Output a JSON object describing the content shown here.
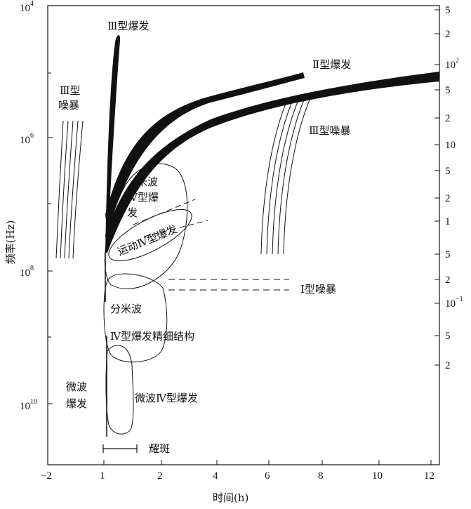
{
  "axes": {
    "x_label": "时间(h)",
    "y_label": "频率(Hz)",
    "x_ticks": [
      "−2",
      "1",
      "2",
      "4",
      "6",
      "8",
      "10",
      "12"
    ],
    "left_ticks": [
      {
        "base": "10",
        "exp": "4"
      },
      {
        "base": "10",
        "exp": "6"
      },
      {
        "base": "10",
        "exp": "8"
      },
      {
        "base": "10",
        "exp": "10"
      }
    ],
    "right_ticks": [
      {
        "base": "5",
        "exp": ""
      },
      {
        "base": "2",
        "exp": ""
      },
      {
        "base": "10",
        "exp": "2"
      },
      {
        "base": "5",
        "exp": ""
      },
      {
        "base": "2",
        "exp": ""
      },
      {
        "base": "10",
        "exp": ""
      },
      {
        "base": "5",
        "exp": ""
      },
      {
        "base": "2",
        "exp": ""
      },
      {
        "base": "1",
        "exp": ""
      },
      {
        "base": "5",
        "exp": ""
      },
      {
        "base": "2",
        "exp": ""
      },
      {
        "base": "10",
        "exp": "−1"
      },
      {
        "base": "5",
        "exp": ""
      },
      {
        "base": "2",
        "exp": ""
      }
    ]
  },
  "labels": {
    "type3_burst": "Ⅲ型爆发",
    "type2_burst": "Ⅱ型爆发",
    "type3_storm_left_1": "Ⅲ型",
    "type3_storm_left_2": "噪暴",
    "type3_storm_right": "Ⅲ型噪暴",
    "meter_1": "米波",
    "meter_2": "Ⅳ型爆",
    "meter_3": "发",
    "moving_type4": "运动Ⅳ型爆发",
    "type1_storm": "Ⅰ型噪暴",
    "decimeter_1": "分米波",
    "decimeter_2": "Ⅳ型爆发精细结构",
    "microwave_burst_1": "微波",
    "microwave_burst_2": "爆发",
    "microwave_type4": "微波Ⅳ型爆发",
    "flare": "耀斑"
  },
  "colors": {
    "ink": "#111111",
    "background": "#ffffff"
  }
}
